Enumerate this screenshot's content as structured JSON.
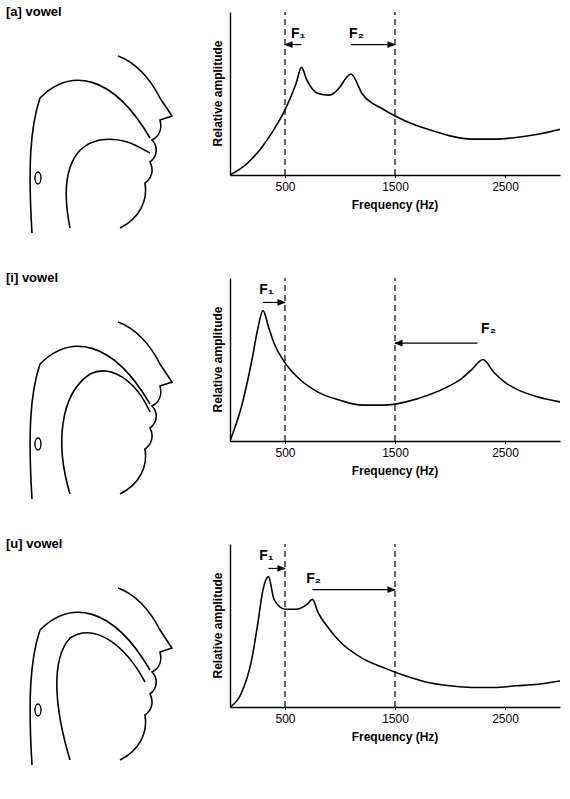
{
  "chart_data": [
    {
      "type": "line",
      "title": "[a] vowel",
      "x_label": "Frequency (Hz)",
      "y_label": "Relative amplitude",
      "xlim": [
        0,
        3000
      ],
      "ylim": [
        0,
        1
      ],
      "xticks": [
        500,
        1500,
        2500
      ],
      "yticks": [],
      "tick_labels": "x",
      "color": "#000000",
      "reference_lines": [
        500,
        1500
      ],
      "x": [
        0,
        100,
        200,
        300,
        400,
        500,
        600,
        650,
        700,
        800,
        900,
        1000,
        1050,
        1100,
        1200,
        1400,
        1600,
        1800,
        2000,
        2200,
        2400,
        2600,
        2800,
        3000
      ],
      "values": [
        0,
        0.04,
        0.1,
        0.18,
        0.28,
        0.4,
        0.56,
        0.66,
        0.58,
        0.5,
        0.49,
        0.54,
        0.59,
        0.62,
        0.5,
        0.4,
        0.33,
        0.28,
        0.24,
        0.22,
        0.22,
        0.23,
        0.25,
        0.28
      ],
      "annotations": [
        {
          "text": "F₁",
          "x": 620,
          "y": 0.84,
          "arrow_from": 650,
          "arrow_to": 500,
          "arrow_y": 0.8
        },
        {
          "text": "F₂",
          "x": 1150,
          "y": 0.84,
          "arrow_from": 1100,
          "arrow_to": 1500,
          "arrow_y": 0.8
        }
      ]
    },
    {
      "type": "line",
      "title": "[i] vowel",
      "x_label": "Frequency (Hz)",
      "y_label": "Relative amplitude",
      "xlim": [
        0,
        3000
      ],
      "ylim": [
        0,
        1
      ],
      "xticks": [
        500,
        1500,
        2500
      ],
      "yticks": [],
      "tick_labels": "x",
      "color": "#000000",
      "reference_lines": [
        500,
        1500
      ],
      "x": [
        0,
        100,
        200,
        250,
        300,
        350,
        400,
        500,
        600,
        800,
        1000,
        1200,
        1400,
        1600,
        1800,
        2000,
        2100,
        2200,
        2300,
        2400,
        2500,
        2600,
        2800,
        3000
      ],
      "values": [
        0,
        0.2,
        0.5,
        0.68,
        0.8,
        0.7,
        0.6,
        0.48,
        0.4,
        0.3,
        0.25,
        0.22,
        0.22,
        0.24,
        0.28,
        0.34,
        0.38,
        0.44,
        0.5,
        0.42,
        0.36,
        0.32,
        0.27,
        0.24
      ],
      "annotations": [
        {
          "text": "F₁",
          "x": 330,
          "y": 0.9,
          "arrow_from": 300,
          "arrow_to": 500,
          "arrow_y": 0.85
        },
        {
          "text": "F₂",
          "x": 2350,
          "y": 0.66,
          "arrow_from": 2250,
          "arrow_to": 1500,
          "arrow_y": 0.6
        }
      ]
    },
    {
      "type": "line",
      "title": "[u] vowel",
      "x_label": "Frequency (Hz)",
      "y_label": "Relative amplitude",
      "xlim": [
        0,
        3000
      ],
      "ylim": [
        0,
        1
      ],
      "xticks": [
        500,
        1500,
        2500
      ],
      "yticks": [],
      "tick_labels": "x",
      "color": "#000000",
      "reference_lines": [
        500,
        1500
      ],
      "x": [
        0,
        100,
        200,
        250,
        300,
        350,
        400,
        500,
        600,
        700,
        750,
        800,
        900,
        1000,
        1200,
        1400,
        1600,
        1800,
        2000,
        2200,
        2400,
        2600,
        2800,
        3000
      ],
      "values": [
        0,
        0.08,
        0.3,
        0.5,
        0.72,
        0.8,
        0.66,
        0.6,
        0.6,
        0.63,
        0.66,
        0.58,
        0.48,
        0.4,
        0.3,
        0.24,
        0.19,
        0.15,
        0.13,
        0.12,
        0.12,
        0.13,
        0.14,
        0.16
      ],
      "annotations": [
        {
          "text": "F₁",
          "x": 330,
          "y": 0.9,
          "arrow_from": 350,
          "arrow_to": 500,
          "arrow_y": 0.85
        },
        {
          "text": "F₂",
          "x": 760,
          "y": 0.76,
          "arrow_from": 750,
          "arrow_to": 1500,
          "arrow_y": 0.72
        }
      ]
    }
  ]
}
